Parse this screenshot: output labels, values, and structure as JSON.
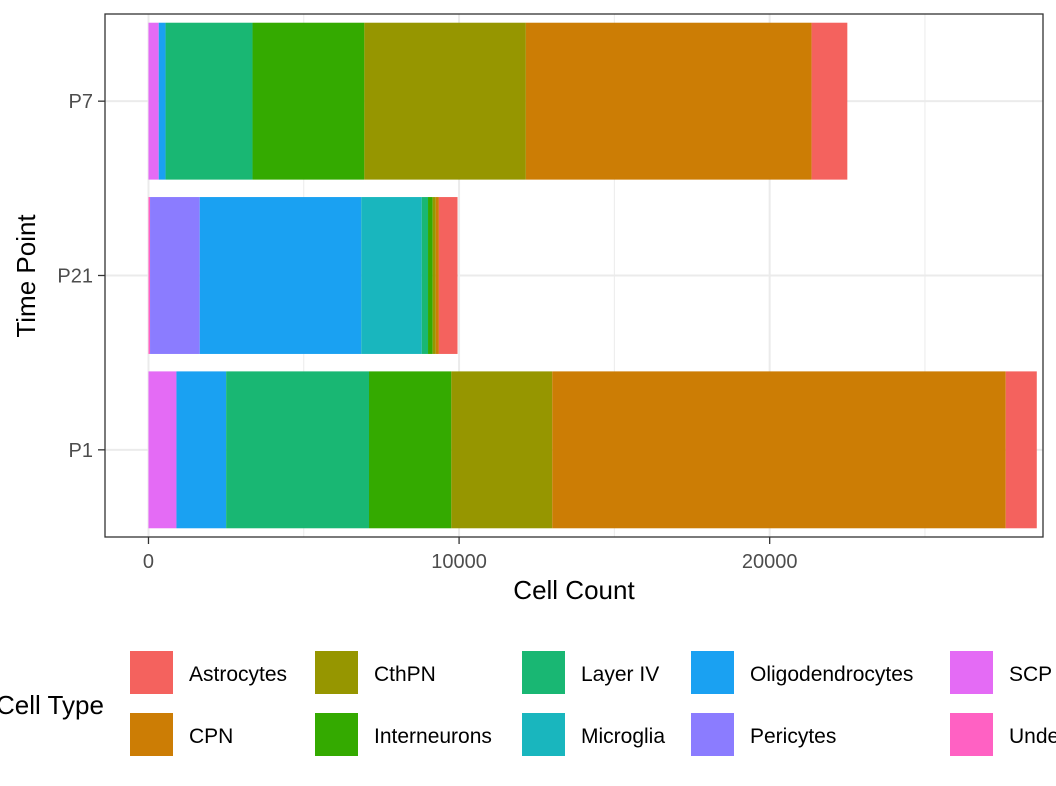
{
  "chart_data": {
    "type": "bar",
    "orientation": "horizontal",
    "stacked": true,
    "xlabel": "Cell Count",
    "ylabel": "Time Point",
    "xlim": [
      -1400,
      28800
    ],
    "x_ticks": [
      0,
      10000,
      20000
    ],
    "x_tick_labels": [
      "0",
      "10000",
      "20000"
    ],
    "grid": true,
    "categories": [
      "P1",
      "P21",
      "P7"
    ],
    "legend": {
      "title": "Cell Type",
      "position": "bottom"
    },
    "series": [
      {
        "name": "SCPN",
        "color": "#E46BF5",
        "values": [
          900,
          0,
          330
        ]
      },
      {
        "name": "Undefined",
        "color": "#FF61C3",
        "values": [
          0,
          50,
          0
        ]
      },
      {
        "name": "Pericytes",
        "color": "#8B7CFF",
        "values": [
          0,
          1600,
          0
        ]
      },
      {
        "name": "Oligodendrocytes",
        "color": "#1AA1F2",
        "values": [
          1600,
          5200,
          220
        ]
      },
      {
        "name": "Microglia",
        "color": "#19B6BE",
        "values": [
          0,
          1950,
          0
        ]
      },
      {
        "name": "Layer IV",
        "color": "#19B773",
        "values": [
          4600,
          200,
          2800
        ]
      },
      {
        "name": "Interneurons",
        "color": "#34AA00",
        "values": [
          2650,
          150,
          3600
        ]
      },
      {
        "name": "CthPN",
        "color": "#969600",
        "values": [
          3250,
          100,
          5200
        ]
      },
      {
        "name": "CPN",
        "color": "#CC7D05",
        "values": [
          14600,
          100,
          9200
        ]
      },
      {
        "name": "Astrocytes",
        "color": "#F4625E",
        "values": [
          1000,
          600,
          1150
        ]
      }
    ],
    "legend_order": [
      "Astrocytes",
      "CPN",
      "CthPN",
      "Interneurons",
      "Layer IV",
      "Microglia",
      "Oligodendrocytes",
      "Pericytes",
      "SCPN",
      "Undefined"
    ],
    "legend_display": [
      "Astrocytes",
      "CPN",
      "CthPN",
      "Interneurons",
      "Layer IV",
      "Microglia",
      "Oligodendrocytes",
      "Pericytes",
      "SCP",
      "Unde"
    ]
  }
}
